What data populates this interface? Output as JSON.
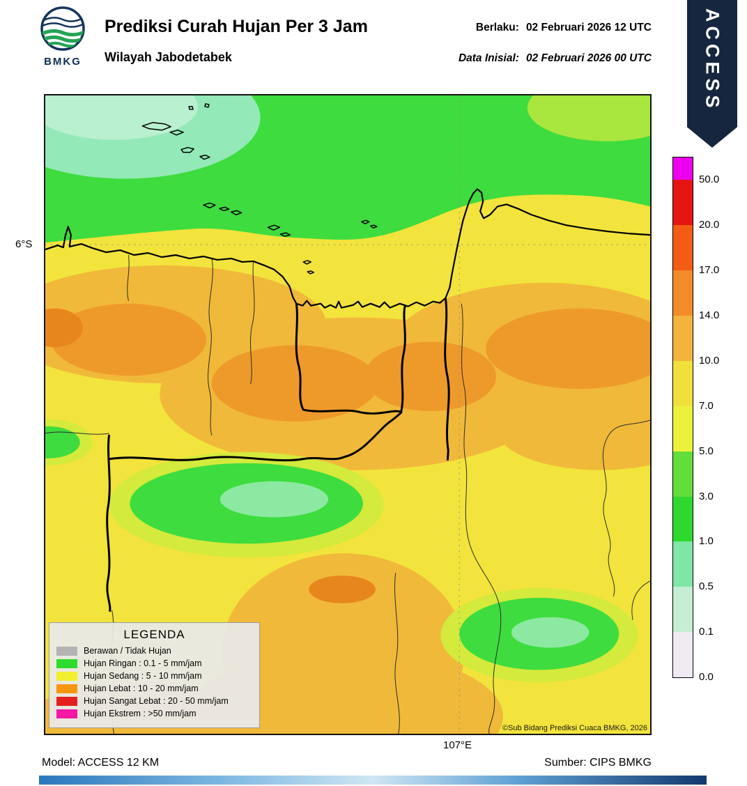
{
  "header": {
    "title": "Prediksi Curah Hujan Per 3 Jam",
    "subtitle": "Wilayah Jabodetabek",
    "berlaku_label": "Berlaku:",
    "berlaku_value": "02 Februari 2026 12 UTC",
    "inisial_label": "Data Inisial:",
    "inisial_value": "02 Februari 2026 00 UTC",
    "logo_text": "BMKG",
    "ribbon_text": "ACCESS"
  },
  "map": {
    "lat_label": "6°S",
    "lon_label": "107°E",
    "copyright": "©Sub Bidang Prediksi Cuaca BMKG, 2026"
  },
  "legend": {
    "title": "LEGENDA",
    "items": [
      {
        "label": "Berawan / Tidak Hujan",
        "color": "#b3b3b3"
      },
      {
        "label": "Hujan Ringan : 0.1 - 5 mm/jam",
        "color": "#2edb2e"
      },
      {
        "label": "Hujan Sedang : 5 - 10 mm/jam",
        "color": "#f2ef2e"
      },
      {
        "label": "Hujan Lebat : 10 - 20 mm/jam",
        "color": "#f6970f"
      },
      {
        "label": "Hujan Sangat Lebat : 20 - 50 mm/jam",
        "color": "#e32020"
      },
      {
        "label": "Hujan Ekstrem : >50 mm/jam",
        "color": "#f318a5"
      }
    ]
  },
  "colorbar": {
    "segments": [
      {
        "tick": "50.0",
        "color": "#ee00ee"
      },
      {
        "tick": "20.0",
        "color": "#e81414"
      },
      {
        "tick": "17.0",
        "color": "#f25c14"
      },
      {
        "tick": "14.0",
        "color": "#f28c28"
      },
      {
        "tick": "10.0",
        "color": "#f2b43a"
      },
      {
        "tick": "7.0",
        "color": "#f2e03a"
      },
      {
        "tick": "5.0",
        "color": "#ecf23a"
      },
      {
        "tick": "3.0",
        "color": "#62dd3a"
      },
      {
        "tick": "1.0",
        "color": "#2ed92e"
      },
      {
        "tick": "0.5",
        "color": "#7fe6a6"
      },
      {
        "tick": "0.1",
        "color": "#c6eed4"
      },
      {
        "tick": "0.0",
        "color": "#f0ebf3"
      }
    ]
  },
  "footer": {
    "model": "Model: ACCESS 12 KM",
    "source": "Sumber: CIPS BMKG"
  }
}
